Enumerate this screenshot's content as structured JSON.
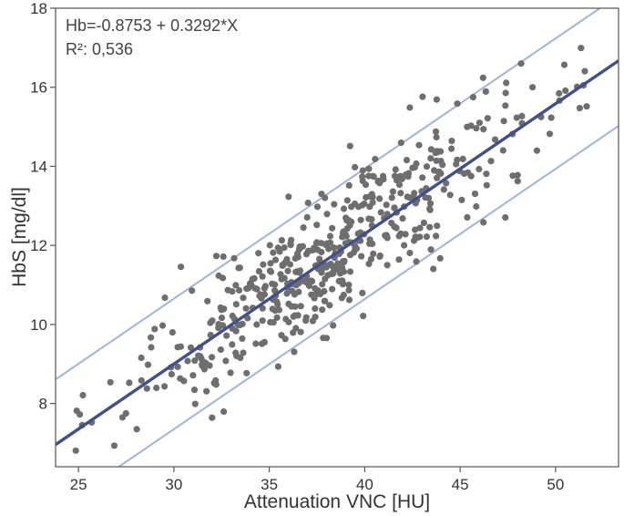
{
  "chart_data": {
    "type": "scatter",
    "xlabel": "Attenuation VNC [HU]",
    "ylabel": "HbS [mg/dl]",
    "xlim": [
      23.8,
      53.3
    ],
    "ylim": [
      6.4,
      18.0
    ],
    "x_ticks": [
      25,
      30,
      35,
      40,
      45,
      50
    ],
    "y_ticks": [
      8,
      10,
      12,
      14,
      16,
      18
    ],
    "grid": false,
    "annotations": [
      "Hb=-0.8753 + 0.3292*X",
      "R²: 0,536"
    ],
    "regression": {
      "intercept": -0.8753,
      "slope": 0.3292
    },
    "prediction_band_offset": 1.65,
    "colors": {
      "points": "#6e6e6e",
      "fit_line": "#3f4f8f",
      "band_lines": "#9db4dd",
      "axis": "#555555"
    },
    "point_count_estimate": 520,
    "x_sd": 5.0,
    "residual_sd": 0.83
  }
}
